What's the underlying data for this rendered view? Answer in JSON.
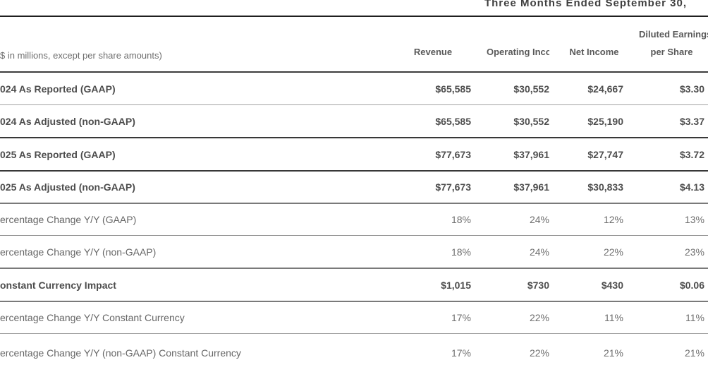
{
  "header": {
    "title": "Three Months Ended September 30,"
  },
  "table": {
    "unit_note": "$ in millions, except per share amounts)",
    "columns": [
      {
        "label": "Revenue"
      },
      {
        "label": "Operating Income"
      },
      {
        "label": "Net Income"
      },
      {
        "line1": "Diluted Earnings",
        "line2": "per Share"
      }
    ],
    "rows": [
      {
        "label": "024 As Reported (GAAP)",
        "values": [
          "$65,585",
          "$30,552",
          "$24,667",
          "$3.30"
        ]
      },
      {
        "label": "024 As Adjusted (non-GAAP)",
        "values": [
          "$65,585",
          "$30,552",
          "$25,190",
          "$3.37"
        ]
      },
      {
        "label": "025 As Reported (GAAP)",
        "values": [
          "$77,673",
          "$37,961",
          "$27,747",
          "$3.72"
        ]
      },
      {
        "label": "025 As Adjusted (non-GAAP)",
        "values": [
          "$77,673",
          "$37,961",
          "$30,833",
          "$4.13"
        ]
      },
      {
        "label": "ercentage Change Y/Y (GAAP)",
        "values": [
          "18%",
          "24%",
          "12%",
          "13%"
        ]
      },
      {
        "label": "ercentage Change Y/Y (non-GAAP)",
        "values": [
          "18%",
          "24%",
          "22%",
          "23%"
        ]
      },
      {
        "label": "onstant Currency Impact",
        "values": [
          "$1,015",
          "$730",
          "$430",
          "$0.06"
        ]
      },
      {
        "label": "ercentage Change Y/Y Constant Currency",
        "values": [
          "17%",
          "22%",
          "11%",
          "11%"
        ]
      },
      {
        "label": "ercentage Change Y/Y (non-GAAP) Constant Currency",
        "values": [
          "17%",
          "22%",
          "21%",
          "21%"
        ]
      }
    ]
  },
  "colors": {
    "title_text": "#3f3f3f",
    "header_text": "#595959",
    "bold_text": "#4d4d4d",
    "regular_text": "#666666",
    "value_text": "#6f6f6f",
    "rule_black": "#1f1f1f",
    "rule_dark": "#3d3d3d",
    "rule_medium": "#7a7a7a",
    "rule_light": "#a3a3a3"
  }
}
